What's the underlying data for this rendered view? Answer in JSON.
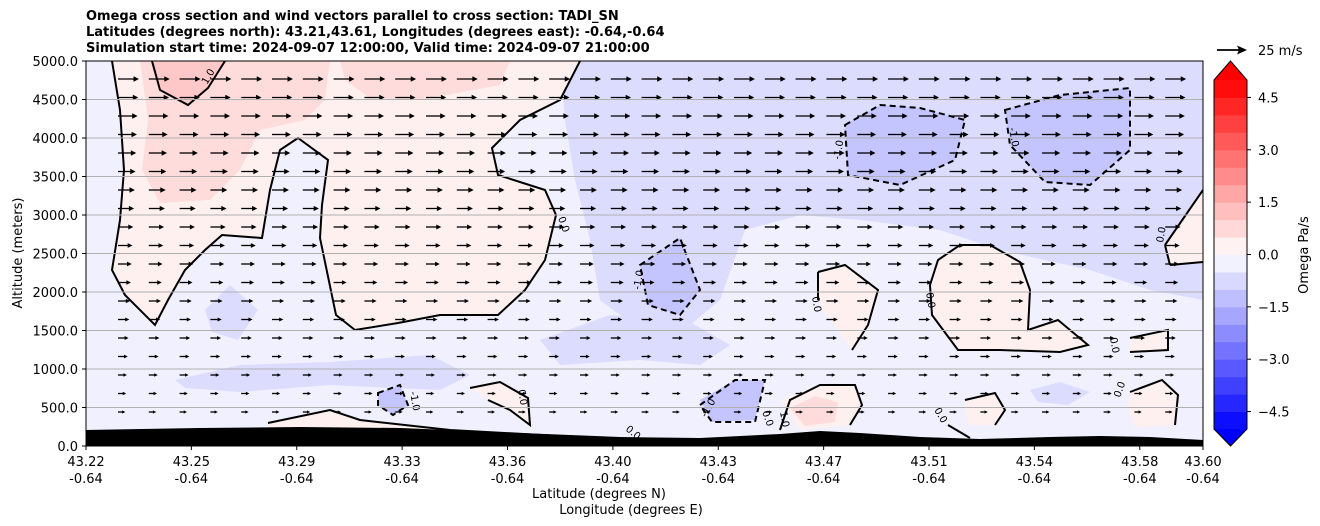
{
  "chart_data": {
    "type": "heatmap",
    "title_lines": [
      "Omega cross section and wind vectors parallel to cross section: TADI_SN",
      "Latitudes (degrees north): 43.21,43.61, Longitudes (degrees east): -0.64,-0.64",
      "Simulation start time: 2024-09-07 12:00:00, Valid time: 2024-09-07 21:00:00"
    ],
    "xlabel_lat": "Latitude (degrees N)",
    "xlabel_lon": "Longitude (degrees E)",
    "ylabel": "Altitude (meters)",
    "ylim": [
      0,
      5000
    ],
    "xlim": [
      43.22,
      43.6
    ],
    "x_ticks": [
      {
        "lat": "43.22",
        "lon": "-0.64"
      },
      {
        "lat": "43.25",
        "lon": "-0.64"
      },
      {
        "lat": "43.29",
        "lon": "-0.64"
      },
      {
        "lat": "43.33",
        "lon": "-0.64"
      },
      {
        "lat": "43.36",
        "lon": "-0.64"
      },
      {
        "lat": "43.40",
        "lon": "-0.64"
      },
      {
        "lat": "43.43",
        "lon": "-0.64"
      },
      {
        "lat": "43.47",
        "lon": "-0.64"
      },
      {
        "lat": "43.51",
        "lon": "-0.64"
      },
      {
        "lat": "43.54",
        "lon": "-0.64"
      },
      {
        "lat": "43.58",
        "lon": "-0.64"
      },
      {
        "lat": "43.60",
        "lon": "-0.64"
      }
    ],
    "y_ticks": [
      "0.0",
      "500.0",
      "1000.0",
      "1500.0",
      "2000.0",
      "2500.0",
      "3000.0",
      "3500.0",
      "4000.0",
      "4500.0",
      "5000.0"
    ],
    "grid": "horizontal",
    "colorbar": {
      "label": "Omega Pa/s",
      "range": [
        -5.0,
        5.0
      ],
      "ticks": [
        "4.5",
        "3.0",
        "1.5",
        "0.0",
        "−1.5",
        "−3.0",
        "−4.5"
      ],
      "extend": "both",
      "colormap": "bwr",
      "low_color": "#0000ff",
      "high_color": "#ff0000"
    },
    "contour_levels": [
      -1.0,
      0.0,
      1.0
    ],
    "contour_labels": [
      "-1.0",
      "0.0",
      "1.0"
    ],
    "vector_key": "25 m/s",
    "terrain_color": "#000000"
  }
}
